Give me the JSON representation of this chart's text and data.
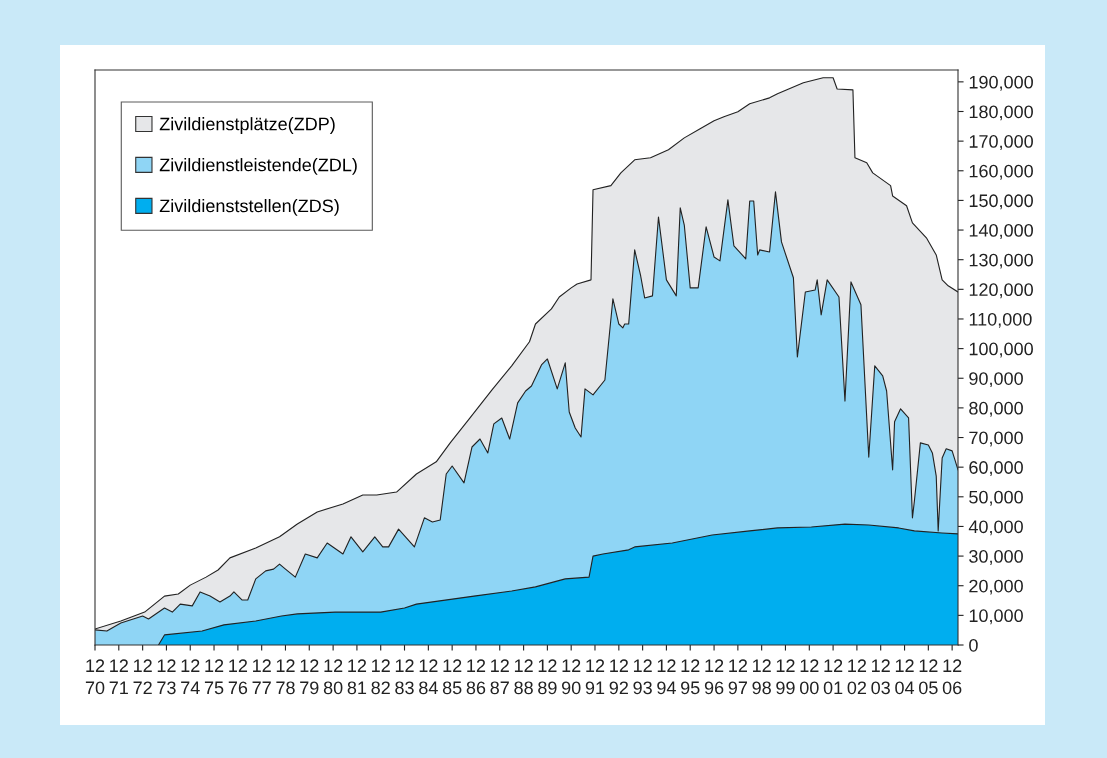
{
  "chart_data": {
    "type": "area",
    "series": [
      {
        "name": "Zivildienstplätze(ZDP)",
        "color": "#e6e7e9",
        "x": [
          "1970-12",
          "1972-01",
          "1973-01",
          "1973-11",
          "1974-06",
          "1974-12",
          "1975-08",
          "1976-02",
          "1976-08",
          "1977-09",
          "1978-09",
          "1979-06",
          "1980-04",
          "1981-05",
          "1982-03",
          "1982-10",
          "1983-08",
          "1984-06",
          "1985-04",
          "1985-11",
          "1986-09",
          "1987-08",
          "1988-06",
          "1989-03",
          "1989-06",
          "1990-02",
          "1990-06",
          "1990-12",
          "1991-03",
          "1991-10",
          "1991-11",
          "1992-08",
          "1993-01",
          "1993-08",
          "1994-04",
          "1995-01",
          "1995-09",
          "1996-05",
          "1996-12",
          "1997-05",
          "1997-12",
          "1998-06",
          "1999-04",
          "1999-08",
          "2000-09",
          "2001-07",
          "2001-12",
          "2002-02",
          "2002-10",
          "2002-11",
          "2003-05",
          "2003-08",
          "2004-05",
          "2004-06",
          "2005-01",
          "2005-04",
          "2005-11",
          "2006-04",
          "2006-07",
          "2006-10",
          "2007-03"
        ],
        "values": [
          5400,
          8100,
          11100,
          16500,
          17200,
          20200,
          22900,
          25300,
          29400,
          32700,
          36500,
          40800,
          44900,
          47600,
          50600,
          50600,
          51600,
          57700,
          61800,
          68200,
          76600,
          86000,
          94200,
          102300,
          108300,
          113400,
          117400,
          120500,
          121800,
          123200,
          153600,
          155000,
          159300,
          163700,
          164400,
          167100,
          171100,
          174200,
          176900,
          178200,
          179900,
          182600,
          184600,
          186000,
          189700,
          191400,
          191400,
          187600,
          187300,
          164400,
          162700,
          159300,
          155000,
          151500,
          148200,
          142400,
          137400,
          131600,
          123200,
          121200,
          119100
        ]
      },
      {
        "name": "Zivildienstleistende(ZDL)",
        "color": "#8fd5f5",
        "x": [
          "1970-12",
          "1971-06",
          "1972-01",
          "1972-12",
          "1973-03",
          "1973-11",
          "1974-03",
          "1974-07",
          "1975-01",
          "1975-05",
          "1975-10",
          "1976-03",
          "1976-08",
          "1976-10",
          "1977-02",
          "1977-05",
          "1977-09",
          "1978-02",
          "1978-06",
          "1978-09",
          "1978-12",
          "1979-05",
          "1979-10",
          "1980-04",
          "1980-09",
          "1981-05",
          "1981-09",
          "1982-03",
          "1982-09",
          "1983-01",
          "1983-04",
          "1983-09",
          "1984-05",
          "1984-10",
          "1985-02",
          "1985-06",
          "1985-09",
          "1985-12",
          "1986-06",
          "1986-10",
          "1987-02",
          "1987-06",
          "1987-09",
          "1988-01",
          "1988-05",
          "1988-09",
          "1989-01",
          "1989-04",
          "1989-09",
          "1989-12",
          "1990-05",
          "1990-09",
          "1990-11",
          "1991-02",
          "1991-05",
          "1991-07",
          "1991-11",
          "1992-05",
          "1992-09",
          "1992-12",
          "1993-02",
          "1993-03",
          "1993-05",
          "1993-08",
          "1993-11",
          "1994-01",
          "1994-05",
          "1994-08",
          "1994-12",
          "1995-05",
          "1995-07",
          "1995-09",
          "1995-12",
          "1996-04",
          "1996-08",
          "1996-12",
          "1997-03",
          "1997-07",
          "1997-10",
          "1998-04",
          "1998-06",
          "1998-08",
          "1998-10",
          "1998-11",
          "1999-04",
          "1999-07",
          "1999-10",
          "2000-04",
          "2000-06",
          "2000-10",
          "2001-03",
          "2001-04",
          "2001-06",
          "2001-09",
          "2002-03",
          "2002-06",
          "2002-09",
          "2003-02",
          "2003-06",
          "2003-09",
          "2004-01",
          "2004-03",
          "2004-06",
          "2004-07",
          "2004-10",
          "2005-02",
          "2005-04",
          "2005-05",
          "2005-08",
          "2005-12",
          "2006-02",
          "2006-04",
          "2006-05",
          "2006-07",
          "2006-09",
          "2006-12",
          "2007-03"
        ],
        "values": [
          5100,
          4700,
          7400,
          9800,
          8800,
          12500,
          11100,
          13800,
          13200,
          17900,
          16500,
          14500,
          16500,
          17900,
          15200,
          15200,
          22300,
          25000,
          25600,
          27300,
          25600,
          22900,
          30700,
          29400,
          34400,
          30700,
          36500,
          31400,
          36500,
          33100,
          33100,
          39100,
          33100,
          42900,
          41500,
          42200,
          57700,
          60400,
          54700,
          66800,
          69500,
          64800,
          74600,
          76600,
          69500,
          81700,
          85700,
          87400,
          94500,
          96500,
          86400,
          95200,
          78600,
          73200,
          70200,
          86400,
          84400,
          89400,
          116800,
          108300,
          107000,
          108300,
          108300,
          133300,
          124500,
          117100,
          117800,
          144400,
          123200,
          117800,
          147500,
          141700,
          120500,
          120500,
          141100,
          130900,
          129600,
          150200,
          134700,
          130300,
          149800,
          149800,
          131600,
          133300,
          132600,
          152900,
          136000,
          123900,
          97200,
          119100,
          119800,
          123200,
          111400,
          123200,
          117400,
          82300,
          122500,
          114800,
          63400,
          94200,
          90800,
          85700,
          59100,
          75300,
          79700,
          76600,
          42900,
          48600,
          68200,
          67500,
          64800,
          57000,
          38500,
          63100,
          66200,
          65500,
          59100
        ]
      },
      {
        "name": "Zivildienststellen(ZDS)",
        "color": "#00aeef",
        "x": [
          "1973-08",
          "1973-11",
          "1975-06",
          "1976-05",
          "1977-09",
          "1978-10",
          "1979-06",
          "1981-01",
          "1982-12",
          "1983-12",
          "1984-06",
          "1986-11",
          "1988-06",
          "1989-06",
          "1990-09",
          "1991-09",
          "1991-11",
          "1992-04",
          "1993-05",
          "1993-08",
          "1995-03",
          "1996-11",
          "1998-06",
          "1999-08",
          "2001-01",
          "2002-06",
          "2003-06",
          "2004-09",
          "2005-05",
          "2006-07",
          "2007-03"
        ],
        "values": [
          0,
          3400,
          4700,
          6800,
          8100,
          9800,
          10500,
          11100,
          11100,
          12500,
          13800,
          16500,
          18200,
          19600,
          22300,
          22900,
          30000,
          30700,
          32100,
          33100,
          34400,
          37100,
          38500,
          39500,
          39800,
          40800,
          40500,
          39500,
          38500,
          37800,
          37500
        ]
      }
    ],
    "xlim": [
      "1970-12",
      "2007-03"
    ],
    "xticks": [
      {
        "value": "1970-12",
        "label": "12\n70"
      },
      {
        "value": "1971-12",
        "label": "12\n71"
      },
      {
        "value": "1972-12",
        "label": "12\n72"
      },
      {
        "value": "1973-12",
        "label": "12\n73"
      },
      {
        "value": "1974-12",
        "label": "12\n74"
      },
      {
        "value": "1975-12",
        "label": "12\n75"
      },
      {
        "value": "1976-12",
        "label": "12\n76"
      },
      {
        "value": "1977-12",
        "label": "12\n77"
      },
      {
        "value": "1978-12",
        "label": "12\n78"
      },
      {
        "value": "1979-12",
        "label": "12\n79"
      },
      {
        "value": "1980-12",
        "label": "12\n80"
      },
      {
        "value": "1981-12",
        "label": "12\n81"
      },
      {
        "value": "1982-12",
        "label": "12\n82"
      },
      {
        "value": "1983-12",
        "label": "12\n83"
      },
      {
        "value": "1984-12",
        "label": "12\n84"
      },
      {
        "value": "1985-12",
        "label": "12\n85"
      },
      {
        "value": "1986-12",
        "label": "12\n86"
      },
      {
        "value": "1987-12",
        "label": "12\n87"
      },
      {
        "value": "1988-12",
        "label": "12\n88"
      },
      {
        "value": "1989-12",
        "label": "12\n89"
      },
      {
        "value": "1990-12",
        "label": "12\n90"
      },
      {
        "value": "1991-12",
        "label": "12\n91"
      },
      {
        "value": "1992-12",
        "label": "12\n92"
      },
      {
        "value": "1993-12",
        "label": "12\n93"
      },
      {
        "value": "1994-12",
        "label": "12\n94"
      },
      {
        "value": "1995-12",
        "label": "12\n95"
      },
      {
        "value": "1996-12",
        "label": "12\n96"
      },
      {
        "value": "1997-12",
        "label": "12\n97"
      },
      {
        "value": "1998-12",
        "label": "12\n98"
      },
      {
        "value": "1999-12",
        "label": "12\n99"
      },
      {
        "value": "2000-12",
        "label": "12\n00"
      },
      {
        "value": "2001-12",
        "label": "12\n01"
      },
      {
        "value": "2002-12",
        "label": "12\n02"
      },
      {
        "value": "2003-12",
        "label": "12\n03"
      },
      {
        "value": "2004-12",
        "label": "12\n04"
      },
      {
        "value": "2005-12",
        "label": "12\n05"
      },
      {
        "value": "2006-12",
        "label": "12\n06"
      }
    ],
    "ylim": [
      0,
      194000
    ],
    "yticks": [
      {
        "value": 0,
        "label": "0"
      },
      {
        "value": 10000,
        "label": "10,000"
      },
      {
        "value": 20000,
        "label": "20,000"
      },
      {
        "value": 30000,
        "label": "30,000"
      },
      {
        "value": 40000,
        "label": "40,000"
      },
      {
        "value": 50000,
        "label": "50,000"
      },
      {
        "value": 60000,
        "label": "60,000"
      },
      {
        "value": 70000,
        "label": "70,000"
      },
      {
        "value": 80000,
        "label": "80,000"
      },
      {
        "value": 90000,
        "label": "90,000"
      },
      {
        "value": 100000,
        "label": "100,000"
      },
      {
        "value": 110000,
        "label": "110,000"
      },
      {
        "value": 120000,
        "label": "120,000"
      },
      {
        "value": 130000,
        "label": "130,000"
      },
      {
        "value": 140000,
        "label": "140,000"
      },
      {
        "value": 150000,
        "label": "150,000"
      },
      {
        "value": 160000,
        "label": "160,000"
      },
      {
        "value": 170000,
        "label": "170,000"
      },
      {
        "value": 180000,
        "label": "180,000"
      },
      {
        "value": 190000,
        "label": "190,000"
      }
    ],
    "grid": false,
    "legend": "top left"
  }
}
